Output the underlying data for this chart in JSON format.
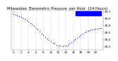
{
  "title": "Milwaukee  Barometric Pressure  per Hour  (24 Hours)",
  "hours": [
    0,
    0.5,
    1,
    1.5,
    2,
    2.5,
    3,
    3.5,
    4,
    4.5,
    5,
    5.5,
    6,
    6.5,
    7,
    7.5,
    8,
    8.5,
    9,
    9.5,
    10,
    10.5,
    11,
    11.5,
    12,
    12.5,
    13,
    13.5,
    14,
    14.5,
    15,
    15.5,
    16,
    16.5,
    17,
    17.5,
    18,
    18.5,
    19,
    19.5,
    20,
    20.5,
    21,
    21.5,
    22,
    22.5,
    23,
    23.5
  ],
  "pressure": [
    30.12,
    30.1,
    30.08,
    30.06,
    30.04,
    30.01,
    29.98,
    29.94,
    29.9,
    29.86,
    29.82,
    29.78,
    29.73,
    29.68,
    29.63,
    29.57,
    29.52,
    29.47,
    29.42,
    29.37,
    29.33,
    29.3,
    29.27,
    29.24,
    29.22,
    29.21,
    29.2,
    29.21,
    29.22,
    29.24,
    29.27,
    29.31,
    29.35,
    29.39,
    29.44,
    29.48,
    29.53,
    29.56,
    29.6,
    29.63,
    29.65,
    29.67,
    29.68,
    29.69,
    29.7,
    29.71,
    29.72,
    29.73
  ],
  "dot_color": "#0000ff",
  "bg_color": "#ffffff",
  "grid_color": "#b0b0b0",
  "ylim": [
    29.1,
    30.22
  ],
  "xlim": [
    -0.5,
    24.0
  ],
  "yticks": [
    29.2,
    29.4,
    29.6,
    29.8,
    30.0,
    30.2
  ],
  "xticks": [
    0,
    2,
    4,
    6,
    8,
    10,
    12,
    14,
    16,
    18,
    20,
    22
  ],
  "legend_color": "#0000ff",
  "title_fontsize": 3.8,
  "tick_fontsize": 3.0,
  "dot_size": 0.8
}
